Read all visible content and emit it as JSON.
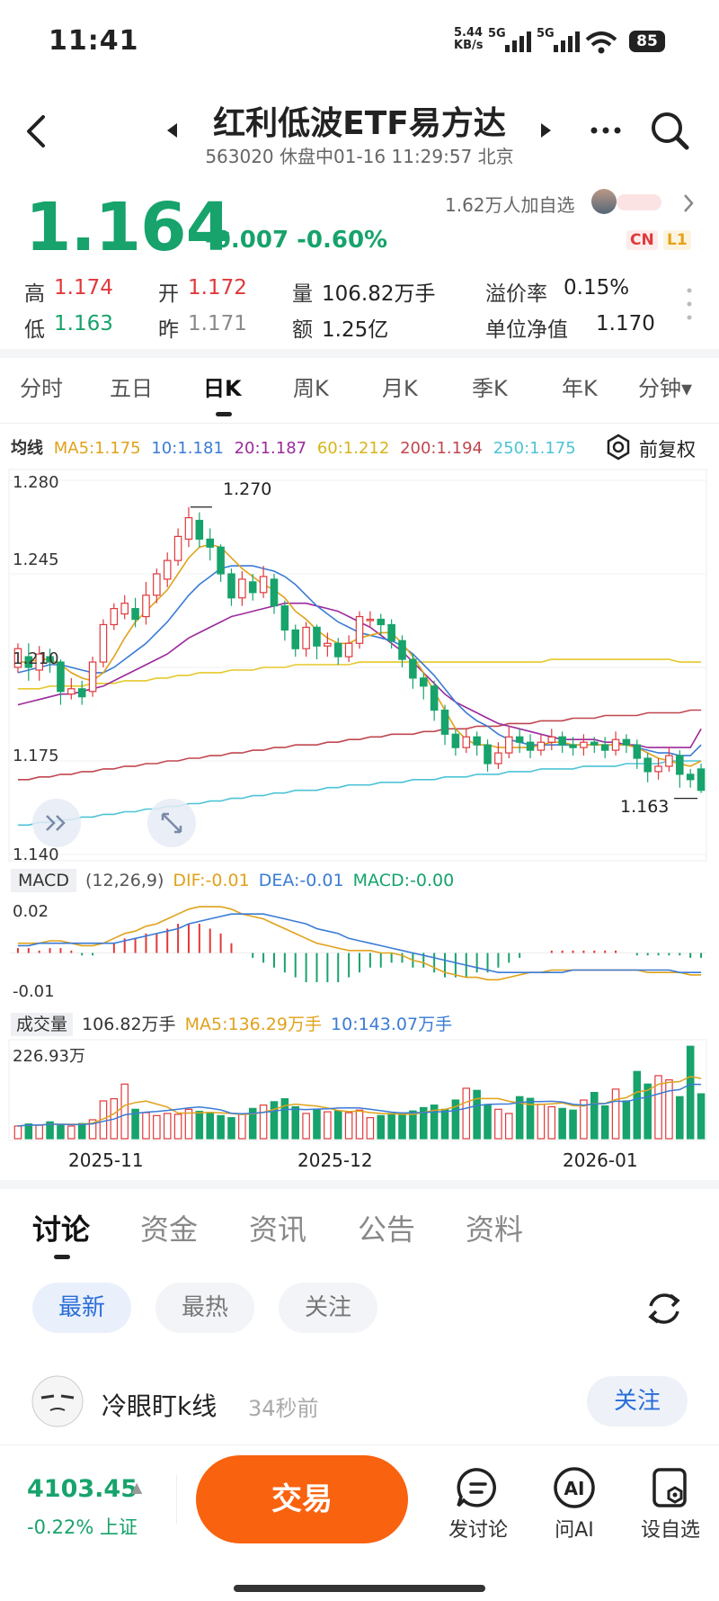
{
  "status_bar": {
    "time": "11:41",
    "net_speed": "5.44",
    "net_unit": "KB/s",
    "sig1": "5G",
    "sig2": "5G",
    "battery": "85"
  },
  "header": {
    "title": "红利低波ETF易方达",
    "subtitle": "563020 休盘中01-16 11:29:57 北京"
  },
  "quote": {
    "price": "1.164",
    "change": "-0.007",
    "change_pct": "-0.60%",
    "watchers": "1.62万人加自选",
    "tag_cn": "CN",
    "tag_l1": "L1",
    "high_label": "高",
    "high": "1.174",
    "open_label": "开",
    "open": "1.172",
    "vol_label": "量",
    "vol": "106.82万手",
    "prem_label": "溢价率",
    "prem": "0.15%",
    "low_label": "低",
    "low": "1.163",
    "prev_label": "昨",
    "prev": "1.171",
    "amt_label": "额",
    "amt": "1.25亿",
    "nav_label": "单位净值",
    "nav": "1.170"
  },
  "period_tabs": [
    "分时",
    "五日",
    "日K",
    "周K",
    "月K",
    "季K",
    "年K",
    "分钟▾"
  ],
  "ma_row": {
    "label": "均线",
    "ma5": "MA5:1.175",
    "ma10": "10:1.181",
    "ma20": "20:1.187",
    "ma60": "60:1.212",
    "ma200": "200:1.194",
    "ma250": "250:1.175",
    "adjust": "前复权"
  },
  "colors": {
    "up": "#e0393b",
    "down": "#17a36b",
    "ma5": "#e0a21b",
    "ma10": "#3a7bd5",
    "ma20": "#9b2a9b",
    "ma60": "#e6c82a",
    "ma200": "#c0474f",
    "ma250": "#4dc3d6",
    "accent": "#f9620f"
  },
  "chart_data": {
    "type": "candlestick",
    "y_ticks": [
      "1.280",
      "1.245",
      "1.210",
      "1.175",
      "1.140"
    ],
    "ylim": [
      1.14,
      1.28
    ],
    "high_marker": "1.270",
    "low_marker": "1.163",
    "x_ticks": [
      "2025-11",
      "2025-12",
      "2026-01"
    ],
    "candles": [
      [
        1.21,
        1.217,
        1.208,
        1.219
      ],
      [
        1.214,
        1.21,
        1.205,
        1.219
      ],
      [
        1.209,
        1.215,
        1.205,
        1.218
      ],
      [
        1.214,
        1.212,
        1.208,
        1.217
      ],
      [
        1.212,
        1.201,
        1.196,
        1.213
      ],
      [
        1.2,
        1.202,
        1.198,
        1.206
      ],
      [
        1.202,
        1.199,
        1.196,
        1.205
      ],
      [
        1.201,
        1.212,
        1.199,
        1.214
      ],
      [
        1.212,
        1.226,
        1.21,
        1.228
      ],
      [
        1.226,
        1.232,
        1.224,
        1.234
      ],
      [
        1.23,
        1.234,
        1.228,
        1.237
      ],
      [
        1.232,
        1.228,
        1.225,
        1.236
      ],
      [
        1.229,
        1.237,
        1.226,
        1.242
      ],
      [
        1.237,
        1.245,
        1.234,
        1.247
      ],
      [
        1.243,
        1.25,
        1.24,
        1.253
      ],
      [
        1.25,
        1.259,
        1.248,
        1.262
      ],
      [
        1.258,
        1.266,
        1.255,
        1.27
      ],
      [
        1.265,
        1.258,
        1.255,
        1.268
      ],
      [
        1.258,
        1.255,
        1.25,
        1.262
      ],
      [
        1.255,
        1.245,
        1.242,
        1.256
      ],
      [
        1.245,
        1.236,
        1.233,
        1.247
      ],
      [
        1.236,
        1.243,
        1.233,
        1.246
      ],
      [
        1.242,
        1.238,
        1.235,
        1.245
      ],
      [
        1.238,
        1.244,
        1.236,
        1.248
      ],
      [
        1.243,
        1.233,
        1.23,
        1.245
      ],
      [
        1.233,
        1.224,
        1.22,
        1.235
      ],
      [
        1.224,
        1.217,
        1.214,
        1.226
      ],
      [
        1.217,
        1.225,
        1.214,
        1.227
      ],
      [
        1.225,
        1.218,
        1.213,
        1.226
      ],
      [
        1.218,
        1.219,
        1.214,
        1.223
      ],
      [
        1.219,
        1.214,
        1.211,
        1.221
      ],
      [
        1.214,
        1.219,
        1.212,
        1.222
      ],
      [
        1.219,
        1.229,
        1.217,
        1.231
      ],
      [
        1.228,
        1.228,
        1.225,
        1.231
      ],
      [
        1.228,
        1.226,
        1.222,
        1.23
      ],
      [
        1.226,
        1.22,
        1.217,
        1.228
      ],
      [
        1.22,
        1.213,
        1.21,
        1.222
      ],
      [
        1.213,
        1.206,
        1.202,
        1.215
      ],
      [
        1.206,
        1.203,
        1.198,
        1.208
      ],
      [
        1.203,
        1.194,
        1.19,
        1.205
      ],
      [
        1.194,
        1.185,
        1.181,
        1.196
      ],
      [
        1.185,
        1.18,
        1.177,
        1.187
      ],
      [
        1.18,
        1.184,
        1.178,
        1.187
      ],
      [
        1.184,
        1.181,
        1.177,
        1.186
      ],
      [
        1.181,
        1.174,
        1.171,
        1.183
      ],
      [
        1.174,
        1.178,
        1.172,
        1.182
      ],
      [
        1.178,
        1.184,
        1.176,
        1.188
      ],
      [
        1.184,
        1.182,
        1.178,
        1.187
      ],
      [
        1.182,
        1.179,
        1.176,
        1.185
      ],
      [
        1.179,
        1.182,
        1.177,
        1.185
      ],
      [
        1.182,
        1.184,
        1.179,
        1.187
      ],
      [
        1.184,
        1.181,
        1.178,
        1.186
      ],
      [
        1.181,
        1.18,
        1.177,
        1.184
      ],
      [
        1.18,
        1.182,
        1.177,
        1.185
      ],
      [
        1.182,
        1.181,
        1.178,
        1.184
      ],
      [
        1.181,
        1.179,
        1.176,
        1.184
      ],
      [
        1.179,
        1.183,
        1.177,
        1.186
      ],
      [
        1.183,
        1.181,
        1.178,
        1.185
      ],
      [
        1.181,
        1.176,
        1.172,
        1.183
      ],
      [
        1.176,
        1.171,
        1.167,
        1.178
      ],
      [
        1.171,
        1.173,
        1.168,
        1.176
      ],
      [
        1.173,
        1.177,
        1.171,
        1.18
      ],
      [
        1.177,
        1.17,
        1.165,
        1.179
      ],
      [
        1.17,
        1.168,
        1.165,
        1.172
      ],
      [
        1.172,
        1.164,
        1.163,
        1.174
      ]
    ],
    "ma": {
      "ma5": [
        1.212,
        1.212,
        1.213,
        1.213,
        1.211,
        1.208,
        1.206,
        1.205,
        1.208,
        1.214,
        1.221,
        1.227,
        1.231,
        1.235,
        1.239,
        1.245,
        1.251,
        1.255,
        1.256,
        1.255,
        1.251,
        1.247,
        1.244,
        1.241,
        1.239,
        1.236,
        1.231,
        1.228,
        1.224,
        1.221,
        1.219,
        1.219,
        1.221,
        1.222,
        1.223,
        1.223,
        1.219,
        1.214,
        1.208,
        1.201,
        1.194,
        1.187,
        1.183,
        1.181,
        1.181,
        1.18,
        1.18,
        1.18,
        1.18,
        1.181,
        1.182,
        1.182,
        1.181,
        1.181,
        1.181,
        1.181,
        1.181,
        1.181,
        1.18,
        1.178,
        1.176,
        1.175,
        1.174,
        1.173,
        1.175
      ],
      "ma10": [
        1.208,
        1.209,
        1.21,
        1.211,
        1.211,
        1.21,
        1.209,
        1.208,
        1.208,
        1.21,
        1.213,
        1.216,
        1.219,
        1.223,
        1.227,
        1.232,
        1.237,
        1.241,
        1.244,
        1.247,
        1.248,
        1.248,
        1.248,
        1.247,
        1.246,
        1.244,
        1.241,
        1.237,
        1.233,
        1.23,
        1.227,
        1.225,
        1.223,
        1.222,
        1.221,
        1.22,
        1.218,
        1.215,
        1.211,
        1.207,
        1.202,
        1.197,
        1.193,
        1.19,
        1.188,
        1.185,
        1.183,
        1.182,
        1.181,
        1.181,
        1.181,
        1.181,
        1.181,
        1.181,
        1.181,
        1.181,
        1.181,
        1.181,
        1.18,
        1.179,
        1.178,
        1.178,
        1.177,
        1.177,
        1.181
      ],
      "ma20": [
        1.196,
        1.197,
        1.198,
        1.199,
        1.2,
        1.2,
        1.201,
        1.202,
        1.203,
        1.205,
        1.207,
        1.209,
        1.211,
        1.213,
        1.215,
        1.218,
        1.221,
        1.223,
        1.225,
        1.227,
        1.229,
        1.23,
        1.231,
        1.232,
        1.233,
        1.234,
        1.234,
        1.234,
        1.233,
        1.232,
        1.231,
        1.229,
        1.227,
        1.225,
        1.222,
        1.219,
        1.216,
        1.212,
        1.208,
        1.204,
        1.2,
        1.197,
        1.195,
        1.193,
        1.191,
        1.189,
        1.188,
        1.187,
        1.186,
        1.185,
        1.184,
        1.183,
        1.183,
        1.183,
        1.183,
        1.182,
        1.182,
        1.181,
        1.181,
        1.18,
        1.18,
        1.18,
        1.18,
        1.18,
        1.187
      ],
      "ma60": [
        1.202,
        1.202,
        1.202,
        1.203,
        1.203,
        1.203,
        1.203,
        1.204,
        1.204,
        1.204,
        1.205,
        1.205,
        1.205,
        1.206,
        1.206,
        1.207,
        1.207,
        1.208,
        1.208,
        1.208,
        1.209,
        1.209,
        1.209,
        1.21,
        1.21,
        1.21,
        1.211,
        1.211,
        1.211,
        1.211,
        1.211,
        1.211,
        1.212,
        1.212,
        1.212,
        1.212,
        1.212,
        1.212,
        1.212,
        1.212,
        1.212,
        1.212,
        1.212,
        1.212,
        1.212,
        1.212,
        1.212,
        1.212,
        1.212,
        1.212,
        1.213,
        1.213,
        1.213,
        1.213,
        1.213,
        1.213,
        1.213,
        1.213,
        1.213,
        1.213,
        1.213,
        1.213,
        1.212,
        1.212,
        1.212
      ],
      "ma200": [
        1.168,
        1.168,
        1.169,
        1.169,
        1.17,
        1.17,
        1.171,
        1.171,
        1.172,
        1.172,
        1.173,
        1.173,
        1.174,
        1.174,
        1.175,
        1.175,
        1.176,
        1.176,
        1.177,
        1.177,
        1.178,
        1.178,
        1.179,
        1.179,
        1.18,
        1.18,
        1.181,
        1.181,
        1.181,
        1.182,
        1.182,
        1.183,
        1.183,
        1.184,
        1.184,
        1.185,
        1.185,
        1.185,
        1.186,
        1.186,
        1.187,
        1.187,
        1.187,
        1.188,
        1.188,
        1.188,
        1.189,
        1.189,
        1.189,
        1.19,
        1.19,
        1.19,
        1.191,
        1.191,
        1.191,
        1.192,
        1.192,
        1.192,
        1.192,
        1.193,
        1.193,
        1.193,
        1.193,
        1.194,
        1.194
      ],
      "ma250": [
        1.151,
        1.151,
        1.152,
        1.152,
        1.153,
        1.153,
        1.154,
        1.154,
        1.155,
        1.155,
        1.156,
        1.156,
        1.157,
        1.157,
        1.158,
        1.158,
        1.159,
        1.159,
        1.16,
        1.16,
        1.161,
        1.161,
        1.162,
        1.162,
        1.163,
        1.163,
        1.164,
        1.164,
        1.164,
        1.165,
        1.165,
        1.166,
        1.166,
        1.166,
        1.167,
        1.167,
        1.167,
        1.168,
        1.168,
        1.168,
        1.169,
        1.169,
        1.169,
        1.17,
        1.17,
        1.17,
        1.171,
        1.171,
        1.171,
        1.172,
        1.172,
        1.172,
        1.172,
        1.173,
        1.173,
        1.173,
        1.173,
        1.174,
        1.174,
        1.174,
        1.174,
        1.175,
        1.175,
        1.175,
        1.175
      ]
    },
    "macd": {
      "label": "MACD",
      "params": "(12,26,9)",
      "dif": "DIF:-0.01",
      "dea": "DEA:-0.01",
      "macd": "MACD:-0.00",
      "y_top": "0.02",
      "y_bottom": "-0.01",
      "ylim": [
        -0.012,
        0.022
      ],
      "dif_series": [
        0.004,
        0.004,
        0.004,
        0.005,
        0.005,
        0.004,
        0.003,
        0.003,
        0.004,
        0.006,
        0.008,
        0.009,
        0.011,
        0.012,
        0.014,
        0.016,
        0.018,
        0.019,
        0.019,
        0.019,
        0.018,
        0.016,
        0.015,
        0.014,
        0.012,
        0.01,
        0.008,
        0.006,
        0.004,
        0.003,
        0.002,
        0.001,
        0.001,
        0.001,
        0.0,
        0.0,
        -0.001,
        -0.003,
        -0.004,
        -0.006,
        -0.008,
        -0.009,
        -0.01,
        -0.01,
        -0.011,
        -0.011,
        -0.01,
        -0.009,
        -0.008,
        -0.008,
        -0.007,
        -0.007,
        -0.007,
        -0.007,
        -0.007,
        -0.007,
        -0.007,
        -0.007,
        -0.007,
        -0.008,
        -0.008,
        -0.008,
        -0.008,
        -0.009,
        -0.009
      ],
      "dea_series": [
        0.003,
        0.003,
        0.004,
        0.004,
        0.004,
        0.004,
        0.004,
        0.004,
        0.004,
        0.004,
        0.005,
        0.006,
        0.007,
        0.008,
        0.009,
        0.01,
        0.012,
        0.013,
        0.014,
        0.015,
        0.016,
        0.016,
        0.016,
        0.016,
        0.015,
        0.014,
        0.013,
        0.012,
        0.01,
        0.009,
        0.008,
        0.006,
        0.005,
        0.004,
        0.003,
        0.002,
        0.001,
        0.0,
        -0.001,
        -0.002,
        -0.003,
        -0.004,
        -0.005,
        -0.006,
        -0.007,
        -0.008,
        -0.008,
        -0.008,
        -0.008,
        -0.008,
        -0.008,
        -0.008,
        -0.007,
        -0.007,
        -0.007,
        -0.007,
        -0.007,
        -0.007,
        -0.007,
        -0.007,
        -0.007,
        -0.007,
        -0.008,
        -0.008,
        -0.008
      ],
      "hist": [
        0.002,
        0.002,
        0.001,
        0.002,
        0.002,
        0.001,
        -0.001,
        -0.001,
        0.0,
        0.004,
        0.006,
        0.006,
        0.008,
        0.008,
        0.01,
        0.012,
        0.012,
        0.012,
        0.01,
        0.008,
        0.004,
        0.0,
        -0.002,
        -0.004,
        -0.006,
        -0.008,
        -0.01,
        -0.012,
        -0.012,
        -0.012,
        -0.012,
        -0.01,
        -0.008,
        -0.006,
        -0.006,
        -0.004,
        -0.004,
        -0.006,
        -0.006,
        -0.008,
        -0.01,
        -0.01,
        -0.01,
        -0.008,
        -0.008,
        -0.006,
        -0.004,
        -0.002,
        0.0,
        0.0,
        0.001,
        0.001,
        0.001,
        0.001,
        0.001,
        0.001,
        0.001,
        0.0,
        -0.001,
        -0.001,
        -0.001,
        -0.001,
        -0.001,
        -0.002,
        -0.002
      ]
    },
    "volume": {
      "label": "成交量",
      "value": "106.82万手",
      "ma5": "MA5:136.29万手",
      "ma10": "10:143.07万手",
      "y_top": "226.93万",
      "ymax": 226.93,
      "values": [
        30,
        35,
        32,
        40,
        34,
        30,
        36,
        45,
        90,
        95,
        130,
        70,
        62,
        55,
        60,
        58,
        70,
        65,
        60,
        55,
        50,
        58,
        72,
        80,
        88,
        95,
        76,
        60,
        70,
        64,
        66,
        62,
        68,
        50,
        55,
        60,
        58,
        66,
        74,
        80,
        70,
        92,
        120,
        115,
        80,
        70,
        60,
        100,
        96,
        82,
        76,
        72,
        68,
        92,
        110,
        78,
        118,
        90,
        160,
        130,
        150,
        140,
        100,
        220,
        106.82
      ]
    }
  },
  "bottom_tabs": [
    "讨论",
    "资金",
    "资讯",
    "公告",
    "资料"
  ],
  "pills": [
    "最新",
    "最热",
    "关注"
  ],
  "post": {
    "author": "冷眼盯k线",
    "time": "34秒前",
    "follow": "关注"
  },
  "footer": {
    "index_value": "4103.45",
    "index_arrow": "▲",
    "index_change": "-0.22%",
    "index_name": "上证",
    "trade": "交易",
    "post": "发讨论",
    "ai": "问AI",
    "set_watch": "设自选",
    "ai_icon_text": "AI"
  }
}
